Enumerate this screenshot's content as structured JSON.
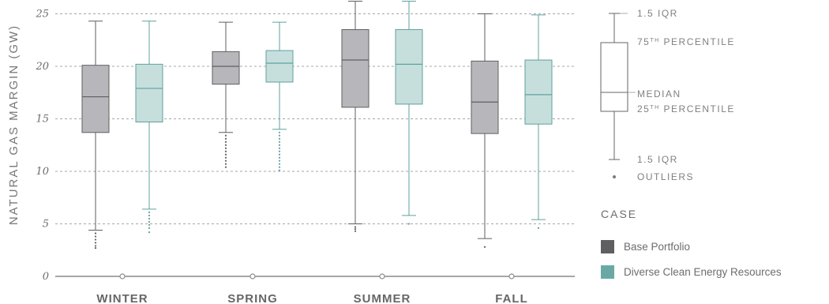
{
  "chart_data": {
    "type": "box",
    "ylabel": "NATURAL GAS MARGIN (GW)",
    "ylim": [
      0,
      26
    ],
    "yticks": [
      0,
      5,
      10,
      15,
      20,
      25
    ],
    "grid": true,
    "categories": [
      "WINTER",
      "SPRING",
      "SUMMER",
      "FALL"
    ],
    "series": [
      {
        "name": "Base Portfolio",
        "color": "#5f5f61",
        "fill": "#b7b7bb",
        "boxes": [
          {
            "whisker_low": 4.4,
            "q1": 13.7,
            "median": 17.1,
            "q3": 20.1,
            "whisker_high": 24.3,
            "outliers": [
              4.1,
              3.8,
              3.5,
              3.2,
              2.9,
              2.7
            ]
          },
          {
            "whisker_low": 13.7,
            "q1": 18.3,
            "median": 20.0,
            "q3": 21.4,
            "whisker_high": 24.2,
            "outliers": [
              13.4,
              13.1,
              12.8,
              12.5,
              12.2,
              11.9,
              11.6,
              11.3,
              11.0,
              10.7,
              10.4
            ]
          },
          {
            "whisker_low": 5.0,
            "q1": 16.1,
            "median": 20.6,
            "q3": 23.5,
            "whisker_high": 26.2,
            "outliers": [
              4.7,
              4.5,
              4.3
            ]
          },
          {
            "whisker_low": 3.6,
            "q1": 13.6,
            "median": 16.6,
            "q3": 20.5,
            "whisker_high": 25.0,
            "outliers": [
              2.8
            ]
          }
        ]
      },
      {
        "name": "Diverse Clean Energy Resources",
        "color": "#5fa09e",
        "fill": "#c6dfdd",
        "boxes": [
          {
            "whisker_low": 6.4,
            "q1": 14.7,
            "median": 17.9,
            "q3": 20.2,
            "whisker_high": 24.3,
            "outliers": [
              6.1,
              5.8,
              5.5,
              5.2,
              4.9,
              4.6,
              4.2
            ]
          },
          {
            "whisker_low": 14.0,
            "q1": 18.5,
            "median": 20.3,
            "q3": 21.5,
            "whisker_high": 24.2,
            "outliers": [
              13.7,
              13.4,
              13.1,
              12.8,
              12.5,
              12.2,
              11.9,
              11.6,
              11.3,
              11.0,
              10.7,
              10.4,
              10.1
            ]
          },
          {
            "whisker_low": 5.8,
            "q1": 16.4,
            "median": 20.2,
            "q3": 23.5,
            "whisker_high": 26.2,
            "outliers": [
              5.0
            ]
          },
          {
            "whisker_low": 5.4,
            "q1": 14.5,
            "median": 17.3,
            "q3": 20.6,
            "whisker_high": 24.9,
            "outliers": [
              4.6
            ]
          }
        ]
      }
    ]
  },
  "key": {
    "upper_whisker": "1.5 IQR",
    "q3_label": "75",
    "q3_suffix": "TH",
    "q3_text": " PERCENTILE",
    "median": "MEDIAN",
    "q1_label": "25",
    "q1_suffix": "TH",
    "q1_text": " PERCENTILE",
    "lower_whisker": "1.5 IQR",
    "outliers": "OUTLIERS"
  },
  "legend": {
    "title": "CASE",
    "items": [
      {
        "label": "Base Portfolio",
        "color": "#5f5f61"
      },
      {
        "label": "Diverse Clean Energy Resources",
        "color": "#6aa8a6"
      }
    ]
  }
}
